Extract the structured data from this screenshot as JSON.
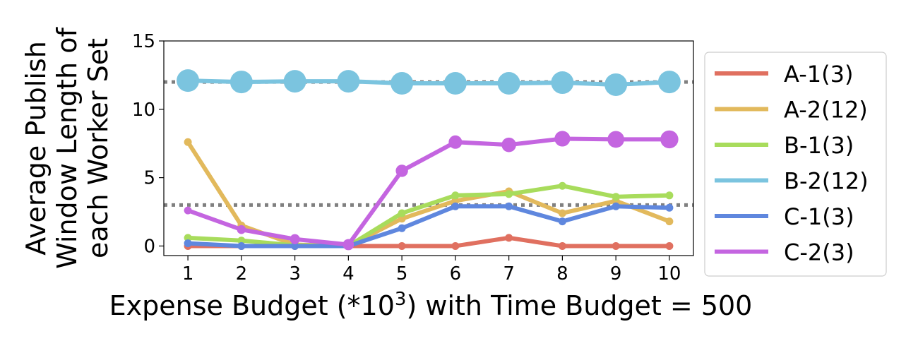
{
  "chart_data": {
    "type": "line",
    "xlabel_main": "Expense Budget (*10",
    "xlabel_sup": "3",
    "xlabel_tail": ") with Time Budget = 500",
    "ylabel_lines": [
      "Average Publish",
      "Window Length of",
      "each Worker Set"
    ],
    "x": [
      1,
      2,
      3,
      4,
      5,
      6,
      7,
      8,
      9,
      10
    ],
    "xlim": [
      0.55,
      10.45
    ],
    "ylim": [
      -0.7,
      15
    ],
    "yticks": [
      0,
      5,
      10,
      15
    ],
    "reference_lines": [
      12,
      3
    ],
    "legend_position": "outside-right",
    "series": [
      {
        "name": "A-1(3)",
        "color": "#e07060",
        "marker": "small",
        "values": [
          0,
          0,
          0,
          0,
          0,
          0,
          0.6,
          0,
          0,
          0
        ]
      },
      {
        "name": "A-2(12)",
        "color": "#e2b95c",
        "marker": "small",
        "values": [
          7.6,
          1.5,
          0.1,
          0,
          2.0,
          3.3,
          4.0,
          2.4,
          3.3,
          1.8
        ]
      },
      {
        "name": "B-1(3)",
        "color": "#a8dc5c",
        "marker": "small",
        "values": [
          0.6,
          0.4,
          0.05,
          0,
          2.4,
          3.7,
          3.8,
          4.4,
          3.6,
          3.7
        ]
      },
      {
        "name": "B-2(12)",
        "color": "#7bc4df",
        "marker": "large",
        "values": [
          12.1,
          12.0,
          12.05,
          12.05,
          11.9,
          11.9,
          11.9,
          11.95,
          11.8,
          12.0
        ]
      },
      {
        "name": "C-1(3)",
        "color": "#5f87de",
        "marker": "small",
        "values": [
          0.2,
          0,
          0,
          0,
          1.3,
          2.9,
          2.9,
          1.8,
          2.9,
          2.8
        ]
      },
      {
        "name": "C-2(3)",
        "color": "#c465e0",
        "marker": "growing",
        "values": [
          2.6,
          1.2,
          0.5,
          0.1,
          5.5,
          7.6,
          7.4,
          7.85,
          7.8,
          7.8
        ]
      }
    ]
  }
}
